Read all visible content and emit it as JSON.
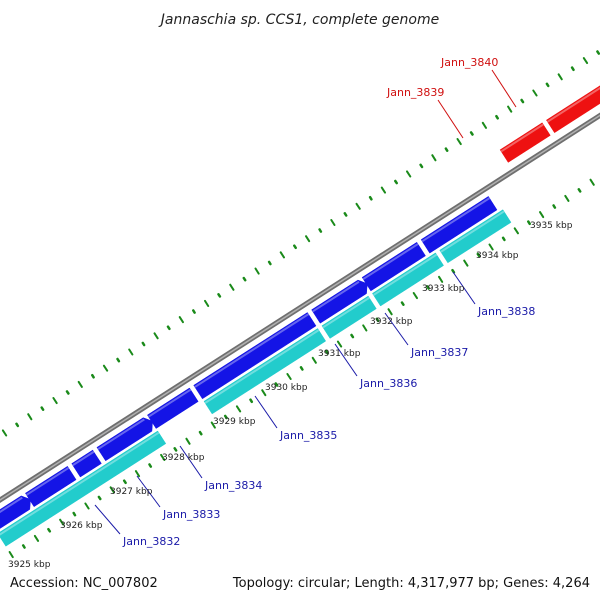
{
  "title": "Jannaschia sp. CCS1, complete genome",
  "footer": {
    "accession": "Accession: NC_007802",
    "topology": "Topology: circular; Length: 4,317,977 bp; Genes: 4,264"
  },
  "colors": {
    "forward_gene": "#1414e6",
    "reverse_gene": "#22cccc",
    "highlight_gene": "#ee1111",
    "backbone": "#888888",
    "ticks": "#1a8a1a",
    "blue_label": "#1a1aa8",
    "red_label": "#d01010"
  },
  "kbp_labels": [
    "3925 kbp",
    "3926 kbp",
    "3927 kbp",
    "3928 kbp",
    "3929 kbp",
    "3930 kbp",
    "3931 kbp",
    "3932 kbp",
    "3933 kbp",
    "3934 kbp",
    "3935 kbp"
  ],
  "genes": [
    {
      "name": "Jann_3832",
      "color": "blue_label"
    },
    {
      "name": "Jann_3833",
      "color": "blue_label"
    },
    {
      "name": "Jann_3834",
      "color": "blue_label"
    },
    {
      "name": "Jann_3835",
      "color": "blue_label"
    },
    {
      "name": "Jann_3836",
      "color": "blue_label"
    },
    {
      "name": "Jann_3837",
      "color": "blue_label"
    },
    {
      "name": "Jann_3838",
      "color": "blue_label"
    },
    {
      "name": "Jann_3839",
      "color": "red_label"
    },
    {
      "name": "Jann_3840",
      "color": "red_label"
    }
  ]
}
